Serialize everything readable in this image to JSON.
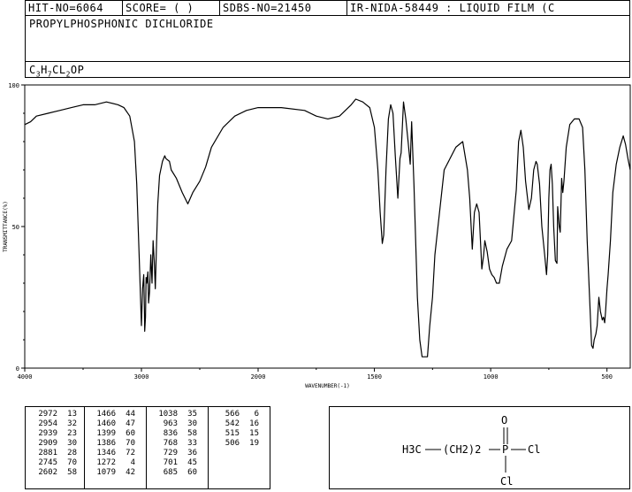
{
  "header": {
    "hit_no": "HIT-NO=6064",
    "score": "SCORE=  (   )",
    "sdbs_no": "SDBS-NO=21450",
    "ir_nida": "IR-NIDA-58449 : LIQUID FILM (C"
  },
  "compound_name": "PROPYLPHOSPHONIC DICHLORIDE",
  "formula": {
    "parts": [
      "C",
      "3",
      "H",
      "7",
      "CL",
      "2",
      "OP"
    ]
  },
  "chart_data": {
    "type": "line",
    "xlabel": "WAVENUMBER(-1)",
    "ylabel": "TRANSMITTANCE(%)",
    "xlim": [
      4000,
      400
    ],
    "ylim": [
      0,
      100
    ],
    "xticks": [
      "4000",
      "3000",
      "2000",
      "1500",
      "1000",
      "500"
    ],
    "xtick_values": [
      4000,
      3000,
      2000,
      1500,
      1000,
      500
    ],
    "yticks": [
      "0",
      "50",
      "100"
    ],
    "ytick_values": [
      0,
      50,
      100
    ],
    "series": [
      {
        "x": [
          4000,
          3950,
          3900,
          3800,
          3700,
          3600,
          3500,
          3400,
          3300,
          3200,
          3150,
          3100,
          3060,
          3040,
          3020,
          3000,
          2990,
          2980,
          2975,
          2972,
          2965,
          2960,
          2954,
          2945,
          2939,
          2930,
          2920,
          2909,
          2900,
          2893,
          2890,
          2881,
          2870,
          2860,
          2845,
          2820,
          2800,
          2790,
          2760,
          2745,
          2700,
          2650,
          2602,
          2560,
          2500,
          2450,
          2400,
          2300,
          2200,
          2100,
          2000,
          1900,
          1800,
          1750,
          1700,
          1650,
          1600,
          1580,
          1550,
          1520,
          1500,
          1485,
          1475,
          1466,
          1460,
          1450,
          1440,
          1430,
          1420,
          1410,
          1399,
          1390,
          1385,
          1375,
          1365,
          1355,
          1346,
          1340,
          1330,
          1315,
          1305,
          1295,
          1286,
          1272,
          1262,
          1250,
          1240,
          1200,
          1150,
          1120,
          1100,
          1090,
          1079,
          1070,
          1060,
          1050,
          1038,
          1030,
          1025,
          1015,
          1005,
          995,
          985,
          975,
          963,
          950,
          930,
          910,
          890,
          880,
          870,
          860,
          850,
          836,
          825,
          815,
          805,
          800,
          790,
          780,
          768,
          760,
          755,
          750,
          745,
          740,
          735,
          729,
          722,
          715,
          712,
          705,
          701,
          695,
          690,
          685,
          675,
          660,
          640,
          620,
          605,
          595,
          585,
          575,
          566,
          560,
          555,
          548,
          542,
          535,
          528,
          520,
          515,
          510,
          506,
          500,
          495,
          485,
          475,
          460,
          445,
          430,
          420,
          410,
          400
        ],
        "y": [
          86,
          87,
          89,
          90,
          91,
          92,
          93,
          93,
          94,
          93,
          92,
          89,
          80,
          65,
          40,
          15,
          28,
          33,
          22,
          13,
          18,
          32,
          30,
          34,
          23,
          27,
          40,
          30,
          45,
          40,
          38,
          28,
          45,
          58,
          68,
          73,
          75,
          74,
          73,
          70,
          67,
          62,
          58,
          62,
          66,
          71,
          78,
          85,
          89,
          91,
          92,
          92,
          91,
          89,
          88,
          89,
          93,
          95,
          94,
          92,
          85,
          70,
          55,
          44,
          47,
          70,
          88,
          93,
          90,
          75,
          60,
          74,
          76,
          94,
          88,
          80,
          72,
          87,
          65,
          25,
          10,
          4,
          4,
          4,
          15,
          25,
          40,
          70,
          78,
          80,
          70,
          60,
          42,
          55,
          58,
          55,
          35,
          40,
          45,
          41,
          35,
          33,
          32,
          30,
          30,
          36,
          42,
          45,
          63,
          80,
          84,
          78,
          66,
          56,
          60,
          70,
          73,
          72,
          65,
          50,
          40,
          33,
          40,
          60,
          70,
          72,
          65,
          50,
          38,
          37,
          57,
          50,
          48,
          67,
          62,
          66,
          78,
          86,
          88,
          88,
          85,
          70,
          45,
          25,
          8,
          7,
          10,
          12,
          15,
          25,
          20,
          17,
          18,
          16,
          20,
          28,
          33,
          45,
          62,
          72,
          78,
          82,
          79,
          74,
          70
        ]
      }
    ],
    "peaks": [
      [
        [
          "2972",
          "13"
        ],
        [
          "2954",
          "32"
        ],
        [
          "2939",
          "23"
        ],
        [
          "2909",
          "30"
        ],
        [
          "2881",
          "28"
        ],
        [
          "2745",
          "70"
        ],
        [
          "2602",
          "58"
        ]
      ],
      [
        [
          "1466",
          "44"
        ],
        [
          "1460",
          "47"
        ],
        [
          "1399",
          "60"
        ],
        [
          "1386",
          "70"
        ],
        [
          "1346",
          "72"
        ],
        [
          "1272",
          "4"
        ],
        [
          "1079",
          "42"
        ]
      ],
      [
        [
          "1038",
          "35"
        ],
        [
          "963",
          "30"
        ],
        [
          "836",
          "58"
        ],
        [
          "768",
          "33"
        ],
        [
          "729",
          "36"
        ],
        [
          "701",
          "45"
        ],
        [
          "685",
          "60"
        ]
      ],
      [
        [
          "566",
          "6"
        ],
        [
          "542",
          "16"
        ],
        [
          "515",
          "15"
        ],
        [
          "506",
          "19"
        ]
      ]
    ]
  },
  "structure": {
    "left_group": "H3C",
    "chain": "(CH2)2",
    "center_atom": "P",
    "top_atom": "O",
    "right_atom": "Cl",
    "bottom_atom": "Cl"
  }
}
